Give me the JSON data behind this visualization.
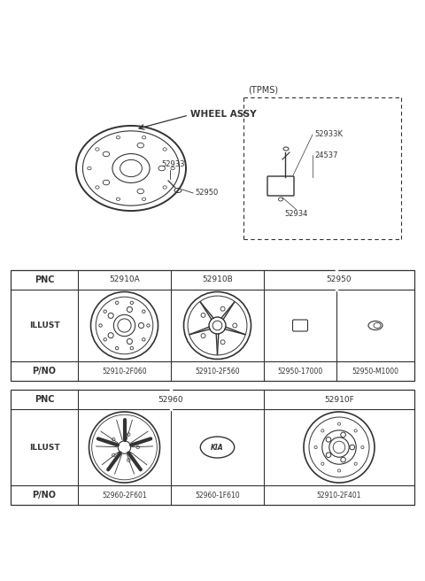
{
  "bg_color": "#ffffff",
  "line_color": "#333333",
  "wheel_assy_label": "WHEEL ASSY",
  "tpms_label": "(TPMS)",
  "table1_pnc": [
    "PNC",
    "52910A",
    "52910B",
    "52950"
  ],
  "table1_pno": [
    "P/NO",
    "52910-2F060",
    "52910-2F560",
    "52950-17000",
    "52950-M1000"
  ],
  "table2_pnc": [
    "PNC",
    "52960",
    "52910F"
  ],
  "table2_pno": [
    "P/NO",
    "52960-2F601",
    "52960-1F610",
    "52910-2F401"
  ],
  "part_labels_main": [
    "52950",
    "52933"
  ],
  "part_labels_tpms": [
    "52933K",
    "24537",
    "52934"
  ],
  "figsize": [
    4.8,
    6.56
  ],
  "dpi": 100
}
